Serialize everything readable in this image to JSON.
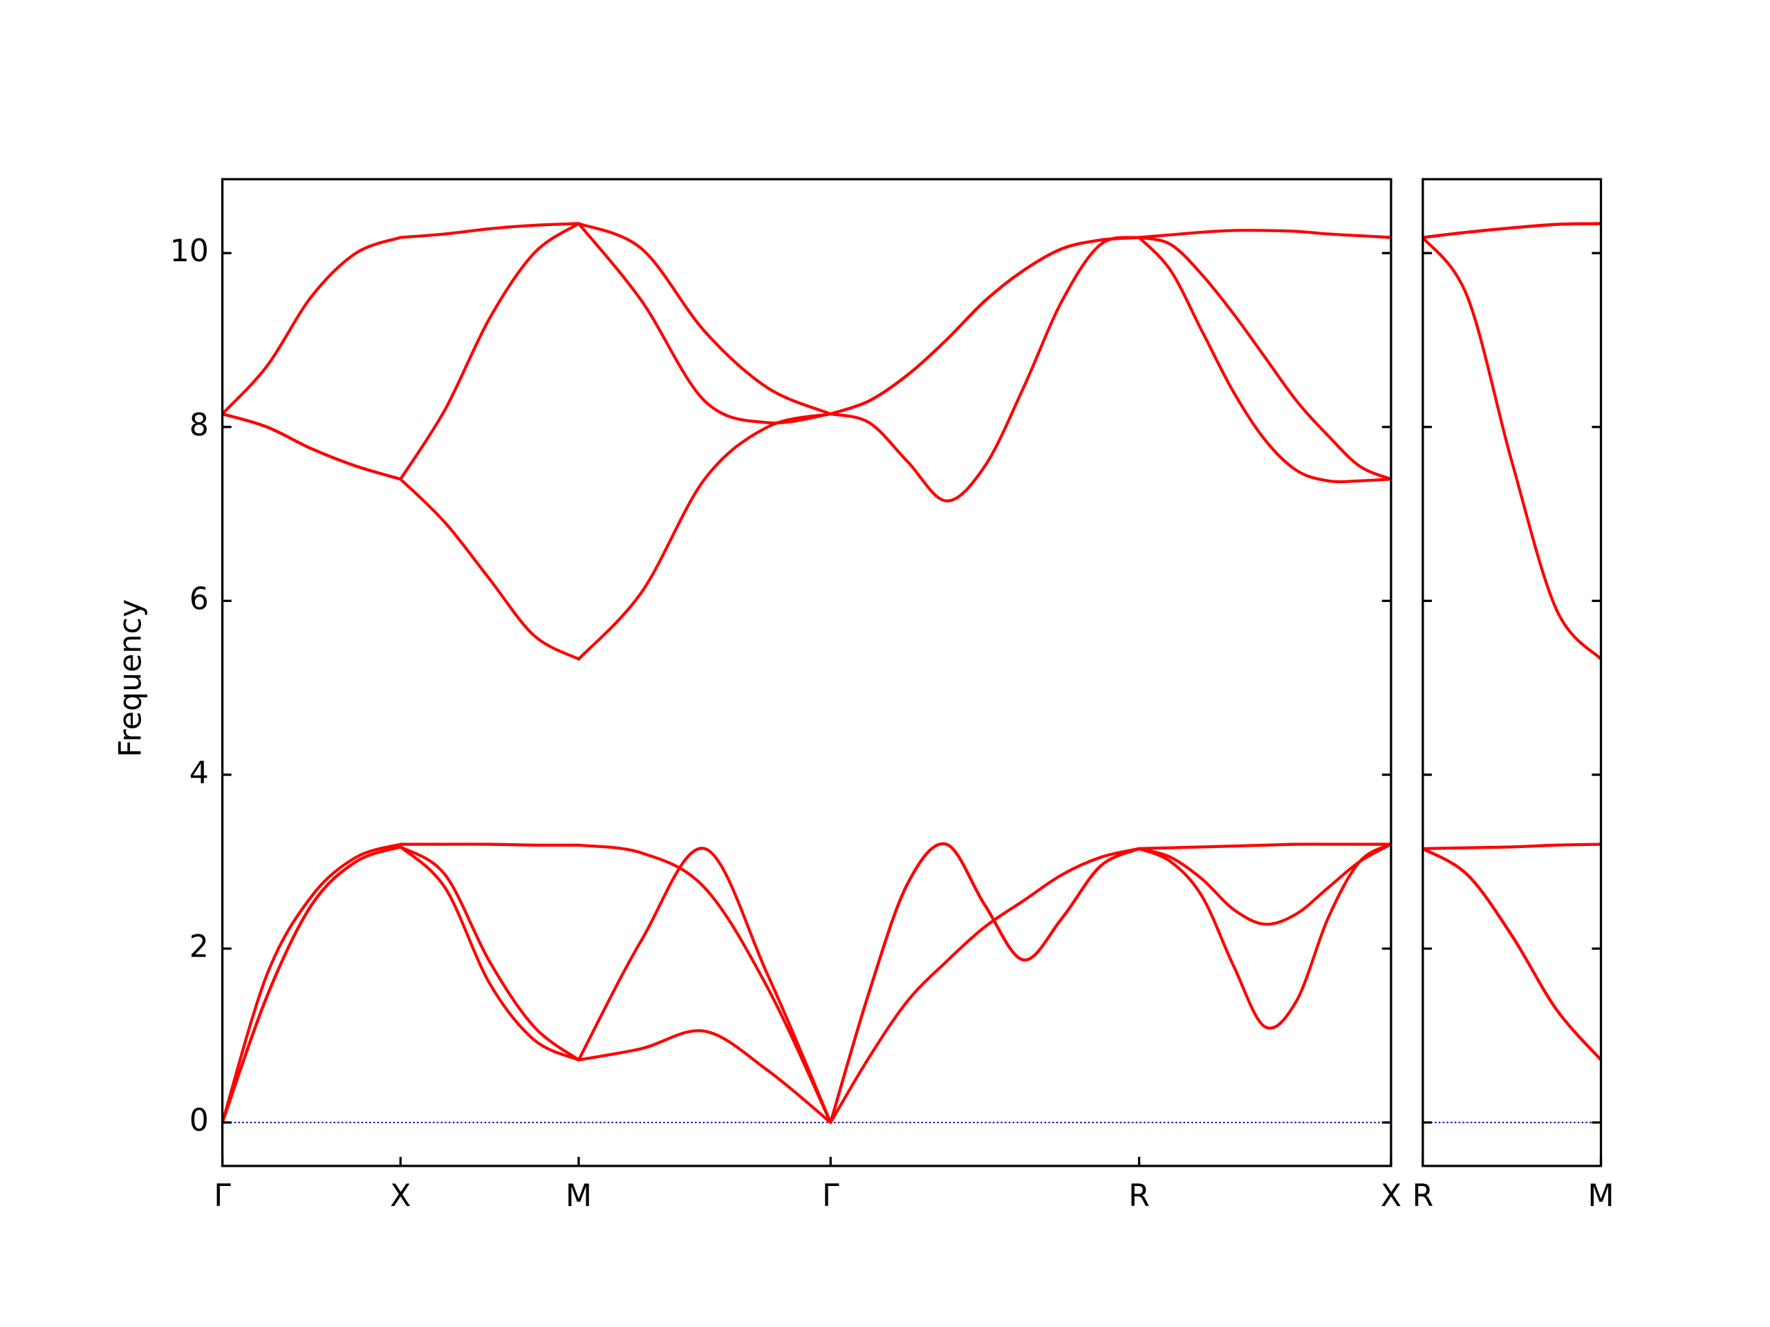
{
  "chart_data": [
    {
      "type": "line",
      "ylabel": "Frequency",
      "ytick_labels": true,
      "xlim": [
        0,
        6.56
      ],
      "ylim": [
        -0.5,
        10.85
      ],
      "yticks": [
        0,
        2,
        4,
        6,
        8,
        10
      ],
      "xticks": [
        {
          "value": 0,
          "label": "Γ"
        },
        {
          "value": 1,
          "label": "X"
        },
        {
          "value": 2,
          "label": "M"
        },
        {
          "value": 3.414,
          "label": "Γ"
        },
        {
          "value": 5.146,
          "label": "R"
        },
        {
          "value": 6.56,
          "label": "X"
        }
      ],
      "hline": {
        "value": 0,
        "color": "#0000cc"
      },
      "x": [
        0,
        0.25,
        0.5,
        0.75,
        1,
        1.25,
        1.5,
        1.75,
        2,
        2.3535,
        2.707,
        3.0605,
        3.414,
        3.6305,
        3.847,
        4.0635,
        4.28,
        4.4965,
        4.713,
        4.9295,
        5.146,
        5.3228,
        5.4995,
        5.6763,
        5.853,
        6.0298,
        6.2065,
        6.3833,
        6.56
      ],
      "series": [
        {
          "color": "#ff0000",
          "values": [
            0,
            1.45,
            2.5,
            3.0,
            3.17,
            2.7,
            1.6,
            0.95,
            0.72,
            0.85,
            1.05,
            0.6,
            0,
            0.75,
            1.4,
            1.85,
            2.25,
            2.55,
            2.85,
            3.05,
            3.15,
            3.0,
            2.6,
            1.8,
            1.1,
            1.4,
            2.35,
            3.0,
            3.2
          ]
        },
        {
          "color": "#ff0000",
          "values": [
            0,
            1.45,
            2.5,
            3.0,
            3.17,
            2.85,
            1.85,
            1.1,
            0.72,
            2.1,
            3.15,
            1.7,
            0,
            1.5,
            2.75,
            3.2,
            2.5,
            1.87,
            2.35,
            2.95,
            3.15,
            3.05,
            2.8,
            2.45,
            2.28,
            2.4,
            2.7,
            3.0,
            3.2
          ]
        },
        {
          "color": "#ff0000",
          "values": [
            0,
            1.7,
            2.6,
            3.05,
            3.2,
            3.2,
            3.2,
            3.19,
            3.19,
            3.1,
            2.7,
            1.55,
            0,
            1.5,
            2.75,
            3.2,
            2.5,
            1.87,
            2.35,
            2.95,
            3.15,
            3.16,
            3.17,
            3.18,
            3.19,
            3.2,
            3.2,
            3.2,
            3.2
          ]
        },
        {
          "color": "#ff0000",
          "values": [
            8.15,
            8.0,
            7.75,
            7.55,
            7.4,
            6.9,
            6.25,
            5.6,
            5.33,
            6.1,
            7.4,
            8.0,
            8.15,
            8.05,
            7.6,
            7.15,
            7.55,
            8.45,
            9.45,
            10.1,
            10.18,
            9.8,
            9.1,
            8.4,
            7.85,
            7.5,
            7.38,
            7.38,
            7.4
          ]
        },
        {
          "color": "#ff0000",
          "values": [
            8.15,
            8.0,
            7.75,
            7.55,
            7.4,
            8.2,
            9.25,
            10.0,
            10.34,
            9.45,
            8.3,
            8.05,
            8.15,
            8.3,
            8.6,
            9.0,
            9.45,
            9.8,
            10.05,
            10.15,
            10.18,
            10.1,
            9.75,
            9.3,
            8.8,
            8.3,
            7.9,
            7.55,
            7.4
          ]
        },
        {
          "color": "#ff0000",
          "values": [
            8.15,
            8.7,
            9.5,
            10.0,
            10.18,
            10.22,
            10.28,
            10.32,
            10.34,
            10.05,
            9.1,
            8.45,
            8.15,
            8.3,
            8.6,
            9.0,
            9.45,
            9.8,
            10.05,
            10.15,
            10.18,
            10.21,
            10.24,
            10.26,
            10.26,
            10.25,
            10.22,
            10.2,
            10.18
          ]
        }
      ]
    },
    {
      "type": "line",
      "ytick_labels": false,
      "xlim": [
        0,
        1
      ],
      "ylim": [
        -0.5,
        10.85
      ],
      "yticks": [
        0,
        2,
        4,
        6,
        8,
        10
      ],
      "xticks": [
        {
          "value": 0,
          "label": "R"
        },
        {
          "value": 1,
          "label": "M"
        }
      ],
      "hline": {
        "value": 0,
        "color": "#0000cc"
      },
      "x": [
        0,
        0.25,
        0.5,
        0.75,
        1
      ],
      "series": [
        {
          "color": "#ff0000",
          "values": [
            3.15,
            2.85,
            2.15,
            1.3,
            0.72
          ]
        },
        {
          "color": "#ff0000",
          "values": [
            3.15,
            2.85,
            2.15,
            1.3,
            0.72
          ]
        },
        {
          "color": "#ff0000",
          "values": [
            3.15,
            3.16,
            3.17,
            3.19,
            3.2
          ]
        },
        {
          "color": "#ff0000",
          "values": [
            10.18,
            9.5,
            7.6,
            5.9,
            5.33
          ]
        },
        {
          "color": "#ff0000",
          "values": [
            10.18,
            10.24,
            10.29,
            10.33,
            10.34
          ]
        },
        {
          "color": "#ff0000",
          "values": [
            10.18,
            10.24,
            10.29,
            10.33,
            10.34
          ]
        }
      ]
    }
  ]
}
